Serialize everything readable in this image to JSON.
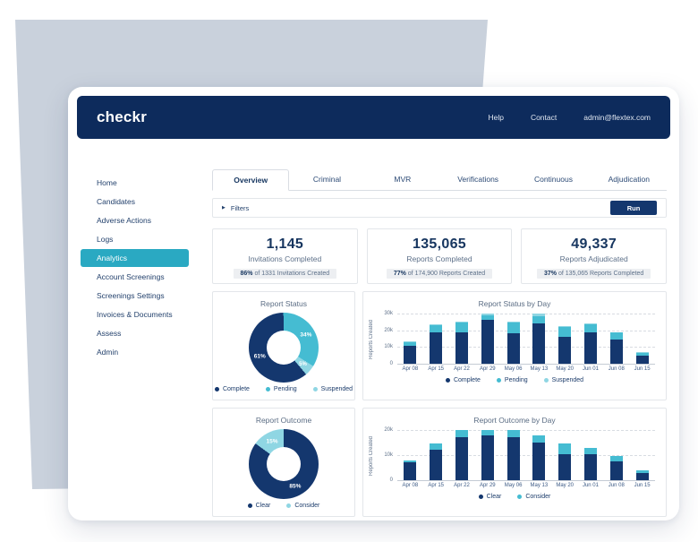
{
  "colors": {
    "navy": "#0d2b5c",
    "chart_navy": "#14376e",
    "teal": "#45bcd2",
    "light_teal": "#8fd6e3",
    "active_teal": "#2aa9c2"
  },
  "topbar": {
    "logo": "checkr",
    "links": [
      {
        "label": "Help"
      },
      {
        "label": "Contact"
      },
      {
        "label": "admin@flextex.com"
      }
    ]
  },
  "sidebar": {
    "items": [
      {
        "label": "Home",
        "active": false
      },
      {
        "label": "Candidates",
        "active": false
      },
      {
        "label": "Adverse Actions",
        "active": false
      },
      {
        "label": "Logs",
        "active": false
      },
      {
        "label": "Analytics",
        "active": true
      },
      {
        "label": "Account Screenings",
        "active": false
      },
      {
        "label": "Screenings Settings",
        "active": false
      },
      {
        "label": "Invoices & Documents",
        "active": false
      },
      {
        "label": "Assess",
        "active": false
      },
      {
        "label": "Admin",
        "active": false
      }
    ]
  },
  "tabs": [
    {
      "label": "Overview",
      "active": true
    },
    {
      "label": "Criminal",
      "active": false
    },
    {
      "label": "MVR",
      "active": false
    },
    {
      "label": "Verifications",
      "active": false
    },
    {
      "label": "Continuous",
      "active": false
    },
    {
      "label": "Adjudication",
      "active": false
    }
  ],
  "filters": {
    "caret_icon": "▶",
    "label": "Filters",
    "run_label": "Run"
  },
  "stats": [
    {
      "value": "1,145",
      "label": "Invitations Completed",
      "pct": "86%",
      "rest": " of 1331 Invitations Created"
    },
    {
      "value": "135,065",
      "label": "Reports Completed",
      "pct": "77%",
      "rest": " of 174,900 Reports Created"
    },
    {
      "value": "49,337",
      "label": "Reports Adjudicated",
      "pct": "37%",
      "rest": " of 135,065 Reports Completed"
    }
  ],
  "chart_data": [
    {
      "type": "pie",
      "variant": "donut",
      "title": "Report Status",
      "rotation_deg": 140,
      "slices": [
        {
          "label": "Complete",
          "pct": 61,
          "color_key": "chart_navy"
        },
        {
          "label": "Pending",
          "pct": 34,
          "color_key": "teal"
        },
        {
          "label": "Suspended",
          "pct": 5,
          "color_key": "light_teal"
        }
      ],
      "legend_position": "bottom"
    },
    {
      "type": "bar",
      "stacked": true,
      "title": "Report Status by Day",
      "xlabel": "",
      "ylabel": "Reports Created",
      "ylim": [
        0,
        30000
      ],
      "grid": true,
      "legend_position": "bottom",
      "yticks": [
        {
          "v": 30000,
          "label": "30k"
        },
        {
          "v": 20000,
          "label": "20k"
        },
        {
          "v": 10000,
          "label": "10k"
        },
        {
          "v": 0,
          "label": "0"
        }
      ],
      "categories": [
        "Apr 08",
        "Apr 15",
        "Apr 22",
        "Apr 29",
        "May 06",
        "May 13",
        "May 20",
        "Jun 01",
        "Jun 08",
        "Jun 15"
      ],
      "series": [
        {
          "name": "Complete",
          "color_key": "chart_navy",
          "values": [
            10500,
            18500,
            19000,
            26500,
            18000,
            24000,
            16000,
            19000,
            14500,
            5000
          ]
        },
        {
          "name": "Pending",
          "color_key": "teal",
          "values": [
            2500,
            4500,
            5500,
            2500,
            6500,
            4500,
            6000,
            4500,
            4000,
            1500
          ]
        },
        {
          "name": "Suspended",
          "color_key": "light_teal",
          "values": [
            500,
            500,
            500,
            1000,
            500,
            1500,
            500,
            500,
            500,
            300
          ]
        }
      ]
    },
    {
      "type": "pie",
      "variant": "donut",
      "title": "Report Outcome",
      "rotation_deg": 0,
      "slices": [
        {
          "label": "Clear",
          "pct": 85,
          "color_key": "chart_navy"
        },
        {
          "label": "Consider",
          "pct": 15,
          "color_key": "light_teal"
        }
      ],
      "legend_position": "bottom"
    },
    {
      "type": "bar",
      "stacked": true,
      "title": "Report Outcome by Day",
      "xlabel": "",
      "ylabel": "Reports Created",
      "ylim": [
        0,
        20000
      ],
      "grid": true,
      "legend_position": "bottom",
      "yticks": [
        {
          "v": 20000,
          "label": "20k"
        },
        {
          "v": 10000,
          "label": "10k"
        },
        {
          "v": 0,
          "label": "0"
        }
      ],
      "categories": [
        "Apr 08",
        "Apr 15",
        "Apr 22",
        "Apr 29",
        "May 06",
        "May 13",
        "May 20",
        "Jun 01",
        "Jun 08",
        "Jun 15"
      ],
      "series": [
        {
          "name": "Clear",
          "color_key": "chart_navy",
          "values": [
            7000,
            12000,
            17000,
            18000,
            17000,
            15000,
            10500,
            10500,
            7500,
            3000
          ]
        },
        {
          "name": "Consider",
          "color_key": "teal",
          "values": [
            1000,
            2500,
            3000,
            2000,
            3000,
            3000,
            4000,
            2500,
            2000,
            1000
          ]
        }
      ]
    }
  ]
}
